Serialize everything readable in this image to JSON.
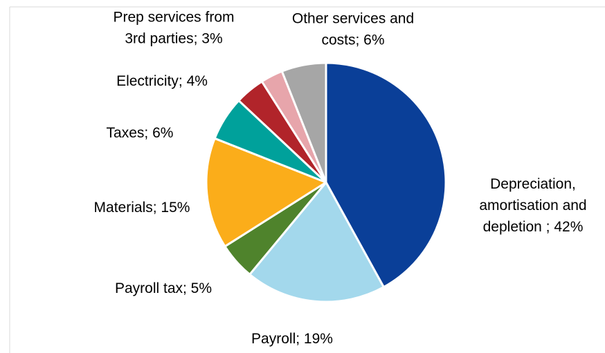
{
  "chart_data": {
    "type": "pie",
    "title": "",
    "legend": "none",
    "start_angle_deg": 0,
    "direction": "clockwise",
    "slices": [
      {
        "category": "Depreciation, amortisation and depletion",
        "value": 42,
        "label_lines": [
          "Depreciation,",
          "amortisation and",
          "depletion ; 42%"
        ],
        "color": "#0a3f98"
      },
      {
        "category": "Payroll",
        "value": 19,
        "label_lines": [
          "Payroll; 19%"
        ],
        "color": "#a3d8ec"
      },
      {
        "category": "Payroll tax",
        "value": 5,
        "label_lines": [
          "Payroll tax; 5%"
        ],
        "color": "#4f832c"
      },
      {
        "category": "Materials",
        "value": 15,
        "label_lines": [
          "Materials; 15%"
        ],
        "color": "#fbad1a"
      },
      {
        "category": "Taxes",
        "value": 6,
        "label_lines": [
          "Taxes; 6%"
        ],
        "color": "#00a19b"
      },
      {
        "category": "Electricity",
        "value": 4,
        "label_lines": [
          "Electricity; 4%"
        ],
        "color": "#b1242a"
      },
      {
        "category": "Prep services from 3rd parties",
        "value": 3,
        "label_lines": [
          "Prep services from",
          "3rd parties; 3%"
        ],
        "color": "#e7a5ab"
      },
      {
        "category": "Other services and costs",
        "value": 6,
        "label_lines": [
          "Other services and",
          "costs; 6%"
        ],
        "color": "#a6a6a6"
      }
    ]
  }
}
